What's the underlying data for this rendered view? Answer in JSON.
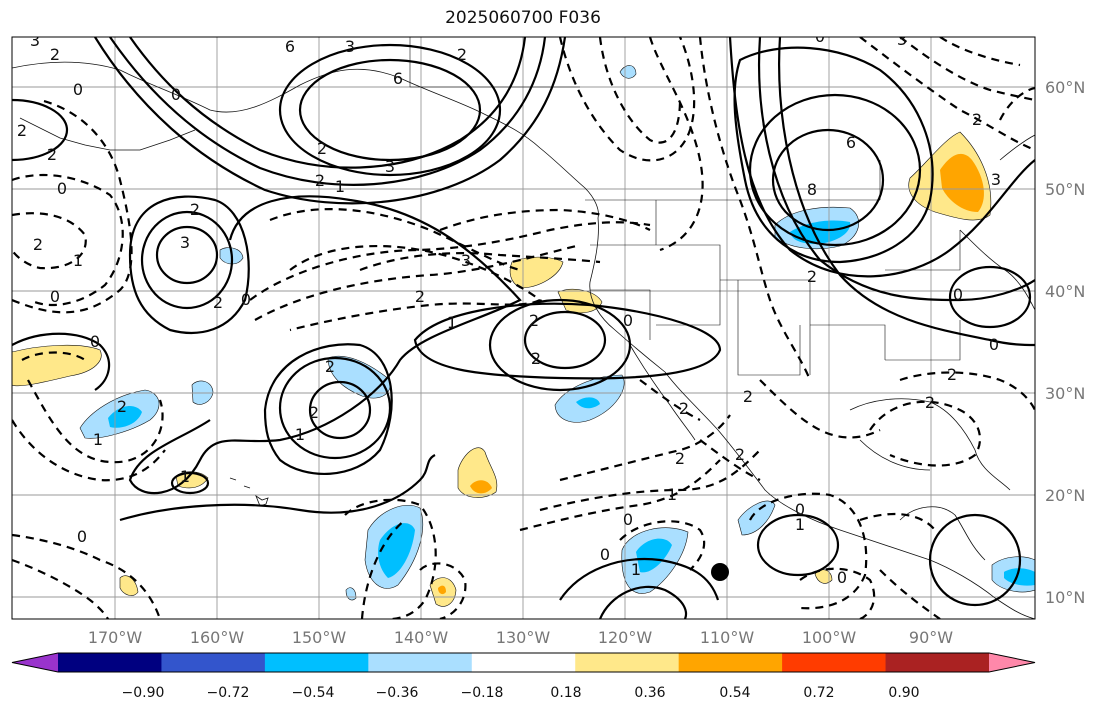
{
  "title": "2025060700 F036",
  "lat_labels": [
    "60°N",
    "50°N",
    "40°N",
    "30°N",
    "20°N",
    "10°N"
  ],
  "lon_labels": [
    "170°W",
    "160°W",
    "150°W",
    "140°W",
    "130°W",
    "120°W",
    "110°W",
    "100°W",
    "90°W"
  ],
  "colorbar": {
    "colors": [
      "#9933cc",
      "#000080",
      "#3355cc",
      "#00bfff",
      "#aadfff",
      "#ffffff",
      "#ffe88a",
      "#ffa500",
      "#ff3c00",
      "#aa2222",
      "#ff88aa"
    ],
    "tick_labels": [
      "−0.90",
      "−0.72",
      "−0.54",
      "−0.36",
      "−0.18",
      "0.18",
      "0.36",
      "0.54",
      "0.72",
      "0.90"
    ]
  },
  "contour_labels": [
    "3",
    "2",
    "0",
    "6",
    "3",
    "2",
    "0",
    "1",
    "2",
    "3",
    "1",
    "0",
    "2",
    "3",
    "1",
    "1",
    "2",
    "2",
    "3",
    "1",
    "1",
    "0",
    "0",
    "2",
    "2",
    "1",
    "6",
    "8",
    "2",
    "2",
    "3",
    "0",
    "2",
    "1",
    "2",
    "2",
    "1",
    "0",
    "1",
    "0",
    "0",
    "1",
    "2",
    "2"
  ]
}
